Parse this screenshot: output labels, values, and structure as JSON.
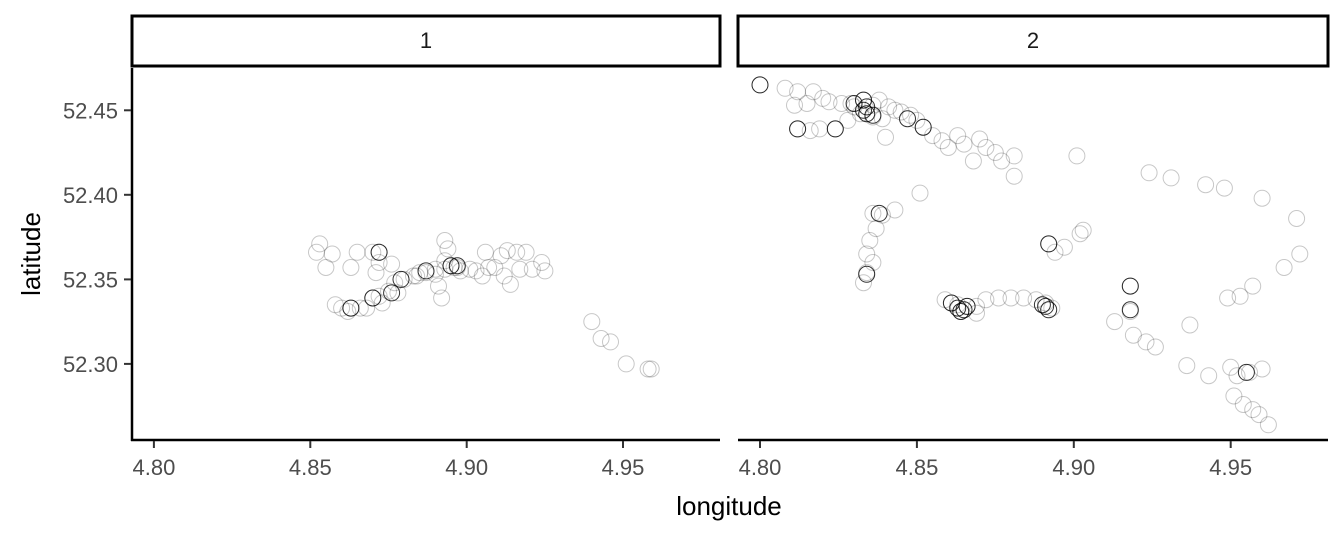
{
  "chart_data": {
    "type": "scatter",
    "xlabel": "longitude",
    "ylabel": "latitude",
    "xlim": [
      4.793,
      4.981
    ],
    "ylim": [
      52.255,
      52.475
    ],
    "x_ticks": [
      {
        "value": 4.8,
        "label": "4.80"
      },
      {
        "value": 4.85,
        "label": "4.85"
      },
      {
        "value": 4.9,
        "label": "4.90"
      },
      {
        "value": 4.95,
        "label": "4.95"
      }
    ],
    "y_ticks": [
      {
        "value": 52.3,
        "label": "52.30"
      },
      {
        "value": 52.35,
        "label": "52.35"
      },
      {
        "value": 52.4,
        "label": "52.40"
      },
      {
        "value": 52.45,
        "label": "52.45"
      }
    ],
    "grid": false,
    "point_color": "#000000",
    "panels": [
      {
        "facet": "1",
        "points": [
          [
            4.853,
            52.371
          ],
          [
            4.852,
            52.366
          ],
          [
            4.857,
            52.365
          ],
          [
            4.855,
            52.357
          ],
          [
            4.863,
            52.357
          ],
          [
            4.865,
            52.366
          ],
          [
            4.872,
            52.366
          ],
          [
            4.872,
            52.36
          ],
          [
            4.876,
            52.359
          ],
          [
            4.871,
            52.354
          ],
          [
            4.858,
            52.335
          ],
          [
            4.86,
            52.333
          ],
          [
            4.863,
            52.333
          ],
          [
            4.866,
            52.333
          ],
          [
            4.868,
            52.333
          ],
          [
            4.87,
            52.339
          ],
          [
            4.872,
            52.34
          ],
          [
            4.873,
            52.336
          ],
          [
            4.875,
            52.343
          ],
          [
            4.877,
            52.348
          ],
          [
            4.88,
            52.35
          ],
          [
            4.883,
            52.352
          ],
          [
            4.885,
            52.354
          ],
          [
            4.887,
            52.354
          ],
          [
            4.89,
            52.356
          ],
          [
            4.893,
            52.356
          ],
          [
            4.895,
            52.358
          ],
          [
            4.897,
            52.357
          ],
          [
            4.893,
            52.361
          ],
          [
            4.894,
            52.368
          ],
          [
            4.893,
            52.373
          ],
          [
            4.89,
            52.353
          ],
          [
            4.891,
            52.346
          ],
          [
            4.892,
            52.339
          ],
          [
            4.898,
            52.355
          ],
          [
            4.901,
            52.356
          ],
          [
            4.903,
            52.355
          ],
          [
            4.905,
            52.352
          ],
          [
            4.907,
            52.357
          ],
          [
            4.909,
            52.357
          ],
          [
            4.906,
            52.366
          ],
          [
            4.911,
            52.364
          ],
          [
            4.913,
            52.367
          ],
          [
            4.916,
            52.366
          ],
          [
            4.919,
            52.366
          ],
          [
            4.921,
            52.356
          ],
          [
            4.924,
            52.36
          ],
          [
            4.925,
            52.355
          ],
          [
            4.912,
            52.352
          ],
          [
            4.914,
            52.347
          ],
          [
            4.917,
            52.356
          ],
          [
            4.94,
            52.325
          ],
          [
            4.943,
            52.315
          ],
          [
            4.946,
            52.313
          ],
          [
            4.951,
            52.3
          ],
          [
            4.958,
            52.297
          ],
          [
            4.959,
            52.297
          ],
          [
            4.87,
            52.366
          ],
          [
            4.862,
            52.331
          ],
          [
            4.884,
            52.352
          ],
          [
            4.896,
            52.357
          ],
          [
            4.878,
            52.342
          ]
        ],
        "dark_points": [
          [
            4.872,
            52.366
          ],
          [
            4.863,
            52.333
          ],
          [
            4.87,
            52.339
          ],
          [
            4.876,
            52.342
          ],
          [
            4.879,
            52.35
          ],
          [
            4.887,
            52.355
          ],
          [
            4.895,
            52.358
          ],
          [
            4.897,
            52.358
          ]
        ]
      },
      {
        "facet": "2",
        "points": [
          [
            4.8,
            52.465
          ],
          [
            4.808,
            52.463
          ],
          [
            4.812,
            52.461
          ],
          [
            4.817,
            52.461
          ],
          [
            4.82,
            52.457
          ],
          [
            4.811,
            52.453
          ],
          [
            4.815,
            52.454
          ],
          [
            4.822,
            52.455
          ],
          [
            4.826,
            52.454
          ],
          [
            4.829,
            52.454
          ],
          [
            4.833,
            52.456
          ],
          [
            4.836,
            52.453
          ],
          [
            4.838,
            52.456
          ],
          [
            4.841,
            52.452
          ],
          [
            4.843,
            52.45
          ],
          [
            4.845,
            52.449
          ],
          [
            4.848,
            52.447
          ],
          [
            4.85,
            52.444
          ],
          [
            4.852,
            52.44
          ],
          [
            4.855,
            52.435
          ],
          [
            4.858,
            52.432
          ],
          [
            4.86,
            52.428
          ],
          [
            4.863,
            52.435
          ],
          [
            4.865,
            52.43
          ],
          [
            4.868,
            52.42
          ],
          [
            4.87,
            52.433
          ],
          [
            4.872,
            52.428
          ],
          [
            4.875,
            52.425
          ],
          [
            4.877,
            52.42
          ],
          [
            4.881,
            52.411
          ],
          [
            4.881,
            52.423
          ],
          [
            4.901,
            52.423
          ],
          [
            4.812,
            52.439
          ],
          [
            4.816,
            52.438
          ],
          [
            4.819,
            52.439
          ],
          [
            4.824,
            52.439
          ],
          [
            4.828,
            52.444
          ],
          [
            4.832,
            52.448
          ],
          [
            4.836,
            52.446
          ],
          [
            4.839,
            52.445
          ],
          [
            4.84,
            52.434
          ],
          [
            4.836,
            52.389
          ],
          [
            4.839,
            52.388
          ],
          [
            4.843,
            52.391
          ],
          [
            4.851,
            52.401
          ],
          [
            4.837,
            52.38
          ],
          [
            4.835,
            52.373
          ],
          [
            4.834,
            52.365
          ],
          [
            4.836,
            52.36
          ],
          [
            4.834,
            52.354
          ],
          [
            4.833,
            52.348
          ],
          [
            4.83,
            52.452
          ],
          [
            4.859,
            52.338
          ],
          [
            4.861,
            52.336
          ],
          [
            4.863,
            52.335
          ],
          [
            4.866,
            52.334
          ],
          [
            4.869,
            52.334
          ],
          [
            4.872,
            52.338
          ],
          [
            4.876,
            52.339
          ],
          [
            4.88,
            52.339
          ],
          [
            4.884,
            52.339
          ],
          [
            4.888,
            52.338
          ],
          [
            4.891,
            52.336
          ],
          [
            4.893,
            52.333
          ],
          [
            4.869,
            52.33
          ],
          [
            4.864,
            52.331
          ],
          [
            4.892,
            52.371
          ],
          [
            4.894,
            52.366
          ],
          [
            4.897,
            52.369
          ],
          [
            4.902,
            52.377
          ],
          [
            4.903,
            52.379
          ],
          [
            4.918,
            52.346
          ],
          [
            4.918,
            52.331
          ],
          [
            4.913,
            52.325
          ],
          [
            4.919,
            52.317
          ],
          [
            4.923,
            52.313
          ],
          [
            4.926,
            52.31
          ],
          [
            4.924,
            52.413
          ],
          [
            4.931,
            52.41
          ],
          [
            4.942,
            52.406
          ],
          [
            4.948,
            52.404
          ],
          [
            4.937,
            52.323
          ],
          [
            4.936,
            52.299
          ],
          [
            4.943,
            52.293
          ],
          [
            4.949,
            52.339
          ],
          [
            4.953,
            52.34
          ],
          [
            4.95,
            52.298
          ],
          [
            4.952,
            52.293
          ],
          [
            4.956,
            52.295
          ],
          [
            4.957,
            52.346
          ],
          [
            4.96,
            52.398
          ],
          [
            4.96,
            52.297
          ],
          [
            4.967,
            52.357
          ],
          [
            4.971,
            52.386
          ],
          [
            4.972,
            52.365
          ],
          [
            4.951,
            52.281
          ],
          [
            4.954,
            52.276
          ],
          [
            4.957,
            52.273
          ],
          [
            4.959,
            52.27
          ],
          [
            4.962,
            52.264
          ]
        ],
        "dark_points": [
          [
            4.8,
            52.465
          ],
          [
            4.83,
            52.454
          ],
          [
            4.833,
            52.456
          ],
          [
            4.834,
            52.452
          ],
          [
            4.834,
            52.448
          ],
          [
            4.833,
            52.45
          ],
          [
            4.836,
            52.447
          ],
          [
            4.812,
            52.439
          ],
          [
            4.824,
            52.439
          ],
          [
            4.852,
            52.44
          ],
          [
            4.847,
            52.445
          ],
          [
            4.838,
            52.389
          ],
          [
            4.834,
            52.353
          ],
          [
            4.861,
            52.336
          ],
          [
            4.863,
            52.333
          ],
          [
            4.865,
            52.332
          ],
          [
            4.864,
            52.331
          ],
          [
            4.866,
            52.334
          ],
          [
            4.89,
            52.335
          ],
          [
            4.892,
            52.332
          ],
          [
            4.891,
            52.334
          ],
          [
            4.892,
            52.371
          ],
          [
            4.918,
            52.346
          ],
          [
            4.918,
            52.332
          ],
          [
            4.955,
            52.295
          ]
        ]
      }
    ]
  }
}
